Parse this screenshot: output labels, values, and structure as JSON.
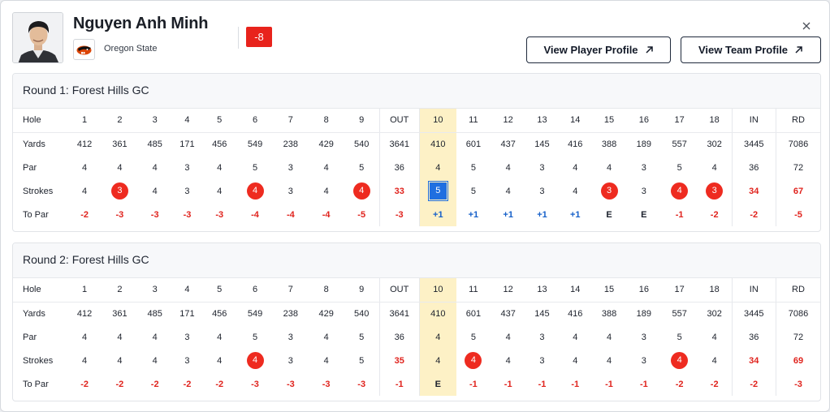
{
  "player": {
    "name": "Nguyen Anh Minh",
    "team": "Oregon State",
    "score": "-8"
  },
  "buttons": {
    "player_profile": "View Player Profile",
    "team_profile": "View Team Profile"
  },
  "colors": {
    "under_par": "#e0231d",
    "over_par": "#1660c9",
    "highlight": "#fdf1c6",
    "badge": "#e8231c"
  },
  "icons": {
    "close": "close-icon",
    "external": "arrow-up-right-icon",
    "team_logo": "beaver-logo-icon"
  },
  "rounds": [
    {
      "title": "Round 1: Forest Hills GC",
      "highlight_column": 10,
      "rows": [
        {
          "label": "Hole",
          "cells": [
            "1",
            "2",
            "3",
            "4",
            "5",
            "6",
            "7",
            "8",
            "9",
            "OUT",
            "10",
            "11",
            "12",
            "13",
            "14",
            "15",
            "16",
            "17",
            "18",
            "IN",
            "RD"
          ]
        },
        {
          "label": "Yards",
          "cells": [
            "412",
            "361",
            "485",
            "171",
            "456",
            "549",
            "238",
            "429",
            "540",
            "3641",
            "410",
            "601",
            "437",
            "145",
            "416",
            "388",
            "189",
            "557",
            "302",
            "3445",
            "7086"
          ]
        },
        {
          "label": "Par",
          "cells": [
            "4",
            "4",
            "4",
            "3",
            "4",
            "5",
            "3",
            "4",
            "5",
            "36",
            "4",
            "5",
            "4",
            "3",
            "4",
            "4",
            "3",
            "5",
            "4",
            "36",
            "72"
          ]
        },
        {
          "label": "Strokes",
          "cells": [
            "4",
            "3",
            "4",
            "3",
            "4",
            "4",
            "3",
            "4",
            "4",
            "33",
            "5",
            "5",
            "4",
            "3",
            "4",
            "3",
            "3",
            "4",
            "3",
            "34",
            "67"
          ]
        },
        {
          "label": "To Par",
          "cells": [
            "-2",
            "-3",
            "-3",
            "-3",
            "-3",
            "-4",
            "-4",
            "-4",
            "-5",
            "-3",
            "+1",
            "+1",
            "+1",
            "+1",
            "+1",
            "E",
            "E",
            "-1",
            "-2",
            "-2",
            "-5"
          ]
        }
      ]
    },
    {
      "title": "Round 2: Forest Hills GC",
      "highlight_column": 10,
      "rows": [
        {
          "label": "Hole",
          "cells": [
            "1",
            "2",
            "3",
            "4",
            "5",
            "6",
            "7",
            "8",
            "9",
            "OUT",
            "10",
            "11",
            "12",
            "13",
            "14",
            "15",
            "16",
            "17",
            "18",
            "IN",
            "RD"
          ]
        },
        {
          "label": "Yards",
          "cells": [
            "412",
            "361",
            "485",
            "171",
            "456",
            "549",
            "238",
            "429",
            "540",
            "3641",
            "410",
            "601",
            "437",
            "145",
            "416",
            "388",
            "189",
            "557",
            "302",
            "3445",
            "7086"
          ]
        },
        {
          "label": "Par",
          "cells": [
            "4",
            "4",
            "4",
            "3",
            "4",
            "5",
            "3",
            "4",
            "5",
            "36",
            "4",
            "5",
            "4",
            "3",
            "4",
            "4",
            "3",
            "5",
            "4",
            "36",
            "72"
          ]
        },
        {
          "label": "Strokes",
          "cells": [
            "4",
            "4",
            "4",
            "3",
            "4",
            "4",
            "3",
            "4",
            "5",
            "35",
            "4",
            "4",
            "4",
            "3",
            "4",
            "4",
            "3",
            "4",
            "4",
            "34",
            "69"
          ]
        },
        {
          "label": "To Par",
          "cells": [
            "-2",
            "-2",
            "-2",
            "-2",
            "-2",
            "-3",
            "-3",
            "-3",
            "-3",
            "-1",
            "E",
            "-1",
            "-1",
            "-1",
            "-1",
            "-1",
            "-1",
            "-2",
            "-2",
            "-2",
            "-3"
          ]
        }
      ]
    }
  ]
}
